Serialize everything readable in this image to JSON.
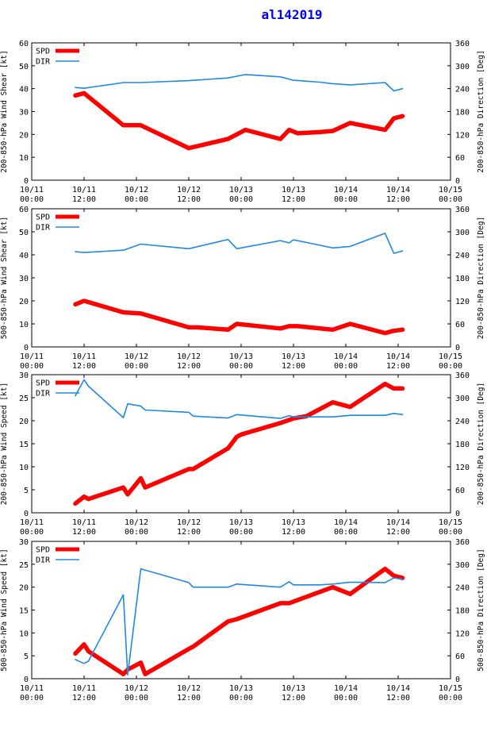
{
  "page": {
    "title": "al142019"
  },
  "colors": {
    "spd": "#ff0000",
    "dir": "#1e88e5",
    "title": "#0000ff",
    "axis": "#000000"
  },
  "x_axis": {
    "ticks": [
      {
        "t": 0,
        "line1": "10/11",
        "line2": "00:00"
      },
      {
        "t": 12,
        "line1": "10/11",
        "line2": "12:00"
      },
      {
        "t": 24,
        "line1": "10/12",
        "line2": "00:00"
      },
      {
        "t": 36,
        "line1": "10/12",
        "line2": "12:00"
      },
      {
        "t": 48,
        "line1": "10/13",
        "line2": "00:00"
      },
      {
        "t": 60,
        "line1": "10/13",
        "line2": "12:00"
      },
      {
        "t": 72,
        "line1": "10/14",
        "line2": "00:00"
      },
      {
        "t": 84,
        "line1": "10/14",
        "line2": "12:00"
      },
      {
        "t": 96,
        "line1": "10/15",
        "line2": "00:00"
      }
    ],
    "range_hours": [
      0,
      96
    ]
  },
  "chart_data": [
    {
      "type": "line",
      "ylabel": "200-850-hPa Wind Shear [kt]",
      "y2label": "200-850-hPa Direction [Deg]",
      "ylim": [
        0,
        60
      ],
      "yticks": [
        0,
        10,
        20,
        30,
        40,
        50,
        60
      ],
      "y2lim": [
        0,
        360
      ],
      "y2ticks": [
        0,
        60,
        120,
        180,
        240,
        300,
        360
      ],
      "legend": [
        "SPD",
        "DIR"
      ],
      "series": [
        {
          "name": "SPD",
          "axis": "left",
          "x": [
            10,
            12,
            21,
            25,
            36,
            45,
            49,
            57,
            59,
            61,
            66,
            69,
            73,
            81,
            83,
            85
          ],
          "values": [
            37,
            38,
            24,
            24,
            14,
            18,
            22,
            18,
            22,
            20.5,
            21,
            21.5,
            25,
            22,
            27,
            28
          ]
        },
        {
          "name": "DIR",
          "axis": "right",
          "x": [
            10,
            12,
            21,
            25,
            36,
            45,
            49,
            57,
            60,
            66,
            69,
            73,
            81,
            83,
            85
          ],
          "values": [
            243,
            241,
            256,
            256,
            261,
            268,
            277,
            271,
            262,
            257,
            253,
            250,
            256,
            234,
            240
          ]
        }
      ]
    },
    {
      "type": "line",
      "ylabel": "500-850-hPa Wind Shear [kt]",
      "y2label": "200-850-hPa Direction [Deg]",
      "ylim": [
        0,
        60
      ],
      "yticks": [
        0,
        10,
        20,
        30,
        40,
        50,
        60
      ],
      "y2lim": [
        0,
        360
      ],
      "y2ticks": [
        0,
        60,
        120,
        180,
        240,
        300,
        360
      ],
      "legend": [
        "SPD",
        "DIR"
      ],
      "series": [
        {
          "name": "SPD",
          "axis": "left",
          "x": [
            10,
            12,
            21,
            25,
            36,
            38,
            45,
            47,
            57,
            59,
            61,
            69,
            73,
            81,
            83,
            85
          ],
          "values": [
            18.5,
            20,
            15,
            14.5,
            8.5,
            8.5,
            7.5,
            10,
            8,
            9,
            9,
            7.5,
            10,
            6,
            7,
            7.5
          ]
        },
        {
          "name": "DIR",
          "axis": "right",
          "x": [
            10,
            12,
            21,
            25,
            36,
            45,
            47,
            57,
            59,
            60,
            66,
            69,
            73,
            81,
            83,
            85
          ],
          "values": [
            248,
            246,
            252,
            268,
            256,
            280,
            256,
            277,
            271,
            279,
            265,
            258,
            262,
            296,
            244,
            250
          ]
        }
      ]
    },
    {
      "type": "line",
      "ylabel": "200-850-hPa Wind Speed [kt]",
      "y2label": "200-850-hPa Direction [Deg]",
      "ylim": [
        0,
        30
      ],
      "yticks": [
        0,
        5,
        10,
        15,
        20,
        25,
        30
      ],
      "y2lim": [
        0,
        360
      ],
      "y2ticks": [
        0,
        60,
        120,
        180,
        240,
        300,
        360
      ],
      "legend": [
        "SPD",
        "DIR"
      ],
      "series": [
        {
          "name": "SPD",
          "axis": "left",
          "x": [
            10,
            12,
            13,
            21,
            22,
            25,
            26,
            36,
            37,
            45,
            47,
            48,
            57,
            60,
            63,
            69,
            73,
            81,
            83,
            85
          ],
          "values": [
            2,
            3.5,
            3,
            5.5,
            4,
            7.5,
            5.5,
            9.5,
            9.5,
            14,
            16.5,
            17,
            19.5,
            20.5,
            21,
            24,
            23,
            28,
            27,
            27
          ]
        },
        {
          "name": "DIR",
          "axis": "right",
          "x": [
            10,
            12,
            13,
            21,
            22,
            25,
            26,
            36,
            37,
            45,
            47,
            57,
            59,
            60,
            66,
            69,
            73,
            81,
            83,
            85
          ],
          "values": [
            305,
            347,
            330,
            248,
            284,
            278,
            268,
            262,
            252,
            247,
            256,
            246,
            253,
            250,
            250,
            250,
            254,
            254,
            259,
            256
          ]
        }
      ]
    },
    {
      "type": "line",
      "ylabel": "500-850-hPa Wind Speed [kt]",
      "y2label": "500-850-hPa Direction [Deg]",
      "ylim": [
        0,
        30
      ],
      "yticks": [
        0,
        5,
        10,
        15,
        20,
        25,
        30
      ],
      "y2lim": [
        0,
        360
      ],
      "y2ticks": [
        0,
        60,
        120,
        180,
        240,
        300,
        360
      ],
      "legend": [
        "SPD",
        "DIR"
      ],
      "series": [
        {
          "name": "SPD",
          "axis": "left",
          "x": [
            10,
            12,
            13,
            21,
            22,
            25,
            26,
            36,
            37,
            45,
            47,
            57,
            59,
            69,
            73,
            81,
            83,
            85
          ],
          "values": [
            5.5,
            7.5,
            6,
            1,
            2,
            3.5,
            1,
            6.5,
            7,
            12.5,
            13,
            16.5,
            16.5,
            20,
            18.5,
            24,
            22.5,
            22
          ]
        },
        {
          "name": "DIR",
          "axis": "right",
          "x": [
            10,
            12,
            13,
            21,
            22,
            25,
            36,
            37,
            45,
            47,
            57,
            59,
            60,
            66,
            69,
            73,
            81,
            83,
            85
          ],
          "values": [
            50,
            40,
            46,
            220,
            10,
            288,
            252,
            240,
            240,
            248,
            240,
            254,
            246,
            246,
            248,
            253,
            252,
            264,
            261
          ]
        }
      ]
    }
  ]
}
